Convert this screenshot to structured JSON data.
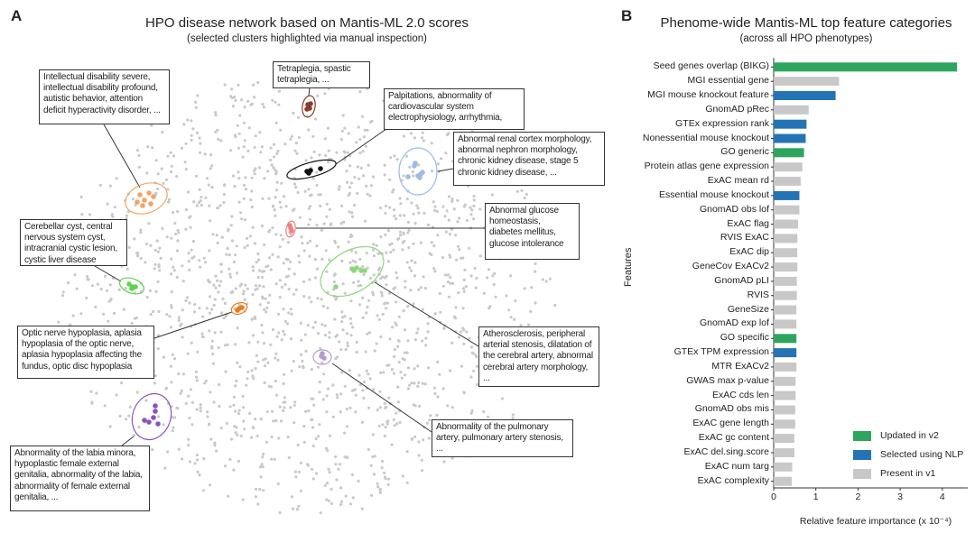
{
  "panel_a": {
    "letter": "A",
    "title": "HPO disease network based on Mantis-ML 2.0 scores",
    "subtitle": "(selected clusters highlighted via manual inspection)",
    "background_node_color": "#c9c9c9",
    "clusters": [
      {
        "id": "intellectual",
        "color": "#f4a460",
        "label": "Intellectual disability severe, intellectual disability  profound, autistic behavior, attention deficit hyperactivity disorder, ..."
      },
      {
        "id": "tetraplegia",
        "color": "#8b3a2b",
        "label": "Tetraplegia, spastic tetraplegia, ..."
      },
      {
        "id": "palpitations",
        "color": "#111111",
        "label": "Palpitations, abnormality of cardiovascular system electrophysiology, arrhythmia,"
      },
      {
        "id": "renal",
        "color": "#9dbbe6",
        "label": "Abnormal renal cortex morphology, abnormal nephron morphology, chronic kidney disease, stage 5 chronic kidney disease, ..."
      },
      {
        "id": "glucose",
        "color": "#f08080",
        "label": "Abnormal glucose homeostasis, diabetes mellitus, glucose intolerance"
      },
      {
        "id": "cerebellar",
        "color": "#5fd44a",
        "label": "Cerebellar cyst, central nervous system cyst, intracranial cystic lesion, cystic liver disease"
      },
      {
        "id": "optic",
        "color": "#f07818",
        "label": "Optic nerve hypoplasia, aplasia hypoplasia of the optic nerve, aplasia hypoplasia affecting the fundus, optic disc hypoplasia"
      },
      {
        "id": "atherosclerosis",
        "color": "#8cd87a",
        "label": "Atherosclerosis, peripheral arterial stenosis, dilatation of the cerebral artery, abnormal cerebral artery morphology, ..."
      },
      {
        "id": "pulmonary",
        "color": "#b59ad0",
        "label": "Abnormality of the pulmonary artery, pulmonary artery stenosis, ..."
      },
      {
        "id": "labia",
        "color": "#8a55c0",
        "label": "Abnormality of the labia minora, hypoplastic female external genitalia, abnormality of the labia, abnormality of female external genitalia, ..."
      }
    ]
  },
  "chart_data": {
    "type": "bar",
    "orientation": "horizontal",
    "letter": "B",
    "title": "Phenome-wide Mantis-ML top feature categories",
    "subtitle": "(across all HPO phenotypes)",
    "xlabel": "Relative feature importance (x 10⁻⁴)",
    "ylabel": "Features",
    "xlim": [
      0,
      4.6
    ],
    "xticks": [
      "0",
      "1",
      "2",
      "3",
      "4"
    ],
    "legend_position": "bottom-right",
    "legend": [
      {
        "key": "updated",
        "label": "Updated in v2",
        "color": "#2ea55e"
      },
      {
        "key": "nlp",
        "label": "Selected using NLP",
        "color": "#2474b5"
      },
      {
        "key": "v1",
        "label": "Present in v1",
        "color": "#c8c8c8"
      }
    ],
    "categories": [
      "Seed genes overlap (BIKG)",
      "MGI essential gene",
      "MGI mouse knockout feature",
      "GnomAD pRec",
      "GTEx expression rank",
      "Nonessential mouse knockout",
      "GO generic",
      "Protein atlas gene expression",
      "ExAC mean rd",
      "Essential mouse knockout",
      "GnomAD obs lof",
      "ExAC flag",
      "RVIS ExAC",
      "ExAC dip",
      "GeneCov ExACv2",
      "GnomAD pLI",
      "RVIS",
      "GeneSize",
      "GnomAD exp lof",
      "GO specific",
      "GTEx TPM expression",
      "MTR ExACv2",
      "GWAS max p-value",
      "ExAC cds len",
      "GnomAD obs mis",
      "ExAC gene length",
      "ExAC gc content",
      "ExAC del.sing.score",
      "ExAC num targ",
      "ExAC complexity"
    ],
    "values": [
      4.35,
      1.55,
      1.47,
      0.83,
      0.78,
      0.76,
      0.72,
      0.68,
      0.64,
      0.61,
      0.61,
      0.58,
      0.56,
      0.56,
      0.56,
      0.55,
      0.55,
      0.54,
      0.54,
      0.54,
      0.54,
      0.54,
      0.52,
      0.52,
      0.51,
      0.51,
      0.49,
      0.49,
      0.44,
      0.43
    ],
    "groups": [
      "updated",
      "v1",
      "nlp",
      "v1",
      "nlp",
      "nlp",
      "updated",
      "v1",
      "v1",
      "nlp",
      "v1",
      "v1",
      "v1",
      "v1",
      "v1",
      "v1",
      "v1",
      "v1",
      "v1",
      "updated",
      "nlp",
      "v1",
      "v1",
      "v1",
      "v1",
      "v1",
      "v1",
      "v1",
      "v1",
      "v1"
    ]
  }
}
